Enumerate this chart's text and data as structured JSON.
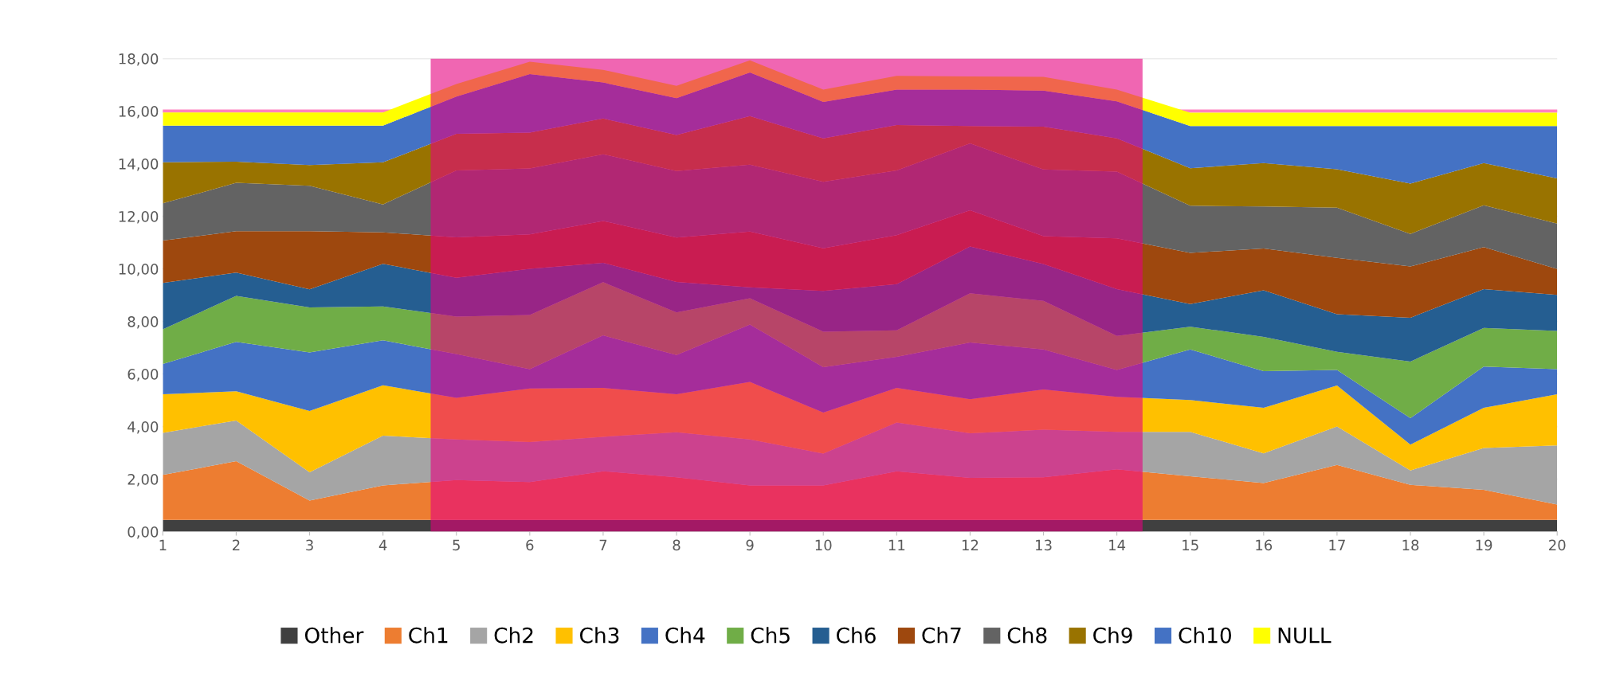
{
  "chart_data": {
    "type": "area",
    "stacked": true,
    "x": [
      1,
      2,
      3,
      4,
      5,
      6,
      7,
      8,
      9,
      10,
      11,
      12,
      13,
      14,
      15,
      16,
      17,
      18,
      19,
      20
    ],
    "series": [
      {
        "name": "Other",
        "color": "#404040",
        "values": [
          0.45,
          0.45,
          0.45,
          0.45,
          0.45,
          0.45,
          0.45,
          0.45,
          0.45,
          0.45,
          0.45,
          0.45,
          0.45,
          0.45,
          0.45,
          0.45,
          0.45,
          0.45,
          0.45,
          0.45
        ]
      },
      {
        "name": "Ch1",
        "color": "#ed7d31",
        "values": [
          1.71,
          2.23,
          0.73,
          1.31,
          1.51,
          1.44,
          1.85,
          1.62,
          1.31,
          1.31,
          1.85,
          1.6,
          1.62,
          1.92,
          1.66,
          1.4,
          2.09,
          1.33,
          1.14,
          0.58
        ]
      },
      {
        "name": "Ch2",
        "color": "#a5a5a5",
        "values": [
          1.6,
          1.55,
          1.08,
          1.89,
          1.55,
          1.52,
          1.31,
          1.71,
          1.75,
          1.21,
          1.85,
          1.69,
          1.81,
          1.43,
          1.69,
          1.13,
          1.46,
          0.55,
          1.59,
          2.25
        ]
      },
      {
        "name": "Ch3",
        "color": "#ffc000",
        "values": [
          1.47,
          1.11,
          2.33,
          1.92,
          1.58,
          2.04,
          1.86,
          1.45,
          2.19,
          1.56,
          1.32,
          1.3,
          1.53,
          1.33,
          1.21,
          1.73,
          1.56,
          0.98,
          1.53,
          1.95
        ]
      },
      {
        "name": "Ch4",
        "color": "#4472c4",
        "values": [
          1.15,
          1.88,
          2.23,
          1.71,
          1.67,
          0.73,
          2.0,
          1.49,
          2.18,
          1.73,
          1.18,
          2.16,
          1.52,
          1.02,
          1.92,
          1.4,
          0.59,
          1.01,
          1.57,
          0.95
        ]
      },
      {
        "name": "Ch5",
        "color": "#70ad47",
        "values": [
          1.32,
          1.75,
          1.71,
          1.29,
          1.42,
          2.06,
          2.02,
          1.62,
          1.0,
          1.35,
          1.01,
          1.87,
          1.85,
          1.3,
          0.87,
          1.3,
          0.69,
          2.15,
          1.47,
          1.46
        ]
      },
      {
        "name": "Ch6",
        "color": "#255e91",
        "values": [
          1.76,
          0.89,
          0.69,
          1.62,
          1.48,
          1.76,
          0.74,
          1.16,
          0.42,
          1.55,
          1.76,
          1.78,
          1.4,
          1.78,
          0.86,
          1.77,
          1.43,
          1.67,
          1.48,
          1.37
        ]
      },
      {
        "name": "Ch7",
        "color": "#9e480e",
        "values": [
          1.62,
          1.57,
          2.21,
          1.2,
          1.54,
          1.31,
          1.59,
          1.69,
          2.12,
          1.62,
          1.86,
          1.38,
          1.06,
          1.93,
          1.95,
          1.59,
          2.15,
          1.95,
          1.6,
          0.98
        ]
      },
      {
        "name": "Ch8",
        "color": "#636363",
        "values": [
          1.41,
          1.84,
          1.73,
          1.06,
          2.54,
          2.51,
          2.54,
          2.53,
          2.54,
          2.53,
          2.46,
          2.54,
          2.54,
          2.54,
          1.79,
          1.6,
          1.91,
          1.24,
          1.59,
          1.73
        ]
      },
      {
        "name": "Ch9",
        "color": "#997300",
        "values": [
          1.56,
          0.81,
          0.79,
          1.6,
          1.4,
          1.36,
          1.36,
          1.37,
          1.85,
          1.65,
          1.73,
          0.66,
          1.63,
          1.26,
          1.43,
          1.65,
          1.46,
          1.91,
          1.6,
          1.72
        ]
      },
      {
        "name": "Ch10",
        "color": "#4472c4",
        "values": [
          1.4,
          1.37,
          1.5,
          1.4,
          1.41,
          2.23,
          1.37,
          1.4,
          1.66,
          1.39,
          1.35,
          1.39,
          1.37,
          1.41,
          1.6,
          1.41,
          1.64,
          2.19,
          1.41,
          1.99
        ]
      },
      {
        "name": "NULL",
        "color": "#ffff00",
        "values": [
          0.5,
          0.5,
          0.5,
          0.5,
          0.48,
          0.47,
          0.48,
          0.47,
          0.46,
          0.47,
          0.52,
          0.5,
          0.52,
          0.45,
          0.51,
          0.51,
          0.51,
          0.51,
          0.51,
          0.51
        ]
      }
    ],
    "xlim": [
      1,
      20
    ],
    "xticks": [
      1,
      2,
      3,
      4,
      5,
      6,
      7,
      8,
      9,
      10,
      11,
      12,
      13,
      14,
      15,
      16,
      17,
      18,
      19,
      20
    ],
    "ylim": [
      0,
      18
    ],
    "yticks": [
      {
        "value": 0,
        "label": "0,00"
      },
      {
        "value": 2,
        "label": "2,00"
      },
      {
        "value": 4,
        "label": "4,00"
      },
      {
        "value": 6,
        "label": "6,00"
      },
      {
        "value": 8,
        "label": "8,00"
      },
      {
        "value": 10,
        "label": "10,00"
      },
      {
        "value": 12,
        "label": "12,00"
      },
      {
        "value": 14,
        "label": "14,00"
      },
      {
        "value": 16,
        "label": "16,00"
      },
      {
        "value": 18,
        "label": "18,00"
      }
    ],
    "grid": "y",
    "legend": "bottom",
    "ref_lines": [
      {
        "axis": "y",
        "value": 16,
        "color": "#ff80c0"
      }
    ],
    "bands": [
      {
        "axis": "x",
        "from": 4.65,
        "to": 14.35,
        "color": "#e6007e"
      }
    ]
  }
}
